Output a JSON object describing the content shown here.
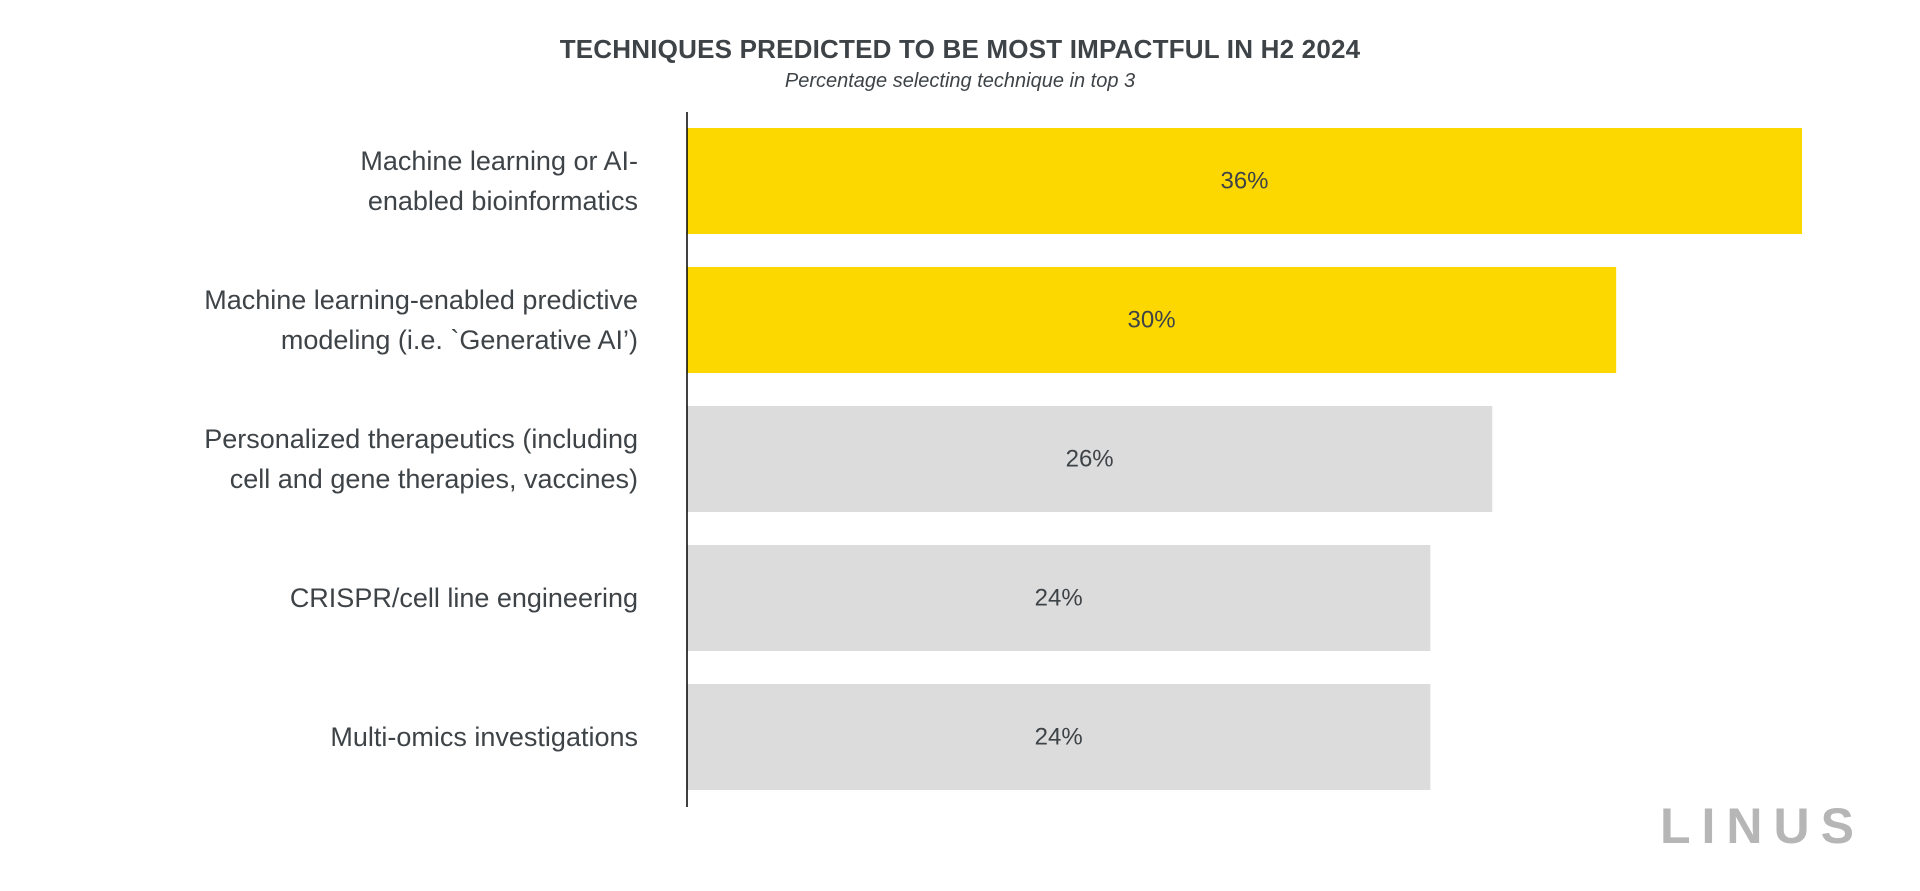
{
  "chart_data": {
    "type": "bar",
    "orientation": "horizontal",
    "title": "TECHNIQUES PREDICTED TO BE MOST IMPACTFUL IN H2 2024",
    "subtitle": "Percentage selecting technique in top 3",
    "categories": [
      [
        "Machine learning or AI-",
        "enabled bioinformatics"
      ],
      [
        "Machine learning-enabled predictive",
        "modeling (i.e. `Generative AI’)"
      ],
      [
        "Personalized therapeutics (including",
        "cell and gene therapies, vaccines)"
      ],
      [
        "CRISPR/cell line engineering"
      ],
      [
        "Multi-omics investigations"
      ]
    ],
    "values": [
      36,
      30,
      26,
      24,
      24
    ],
    "value_labels": [
      "36%",
      "30%",
      "26%",
      "24%",
      "24%"
    ],
    "bar_colors": [
      "#fcd800",
      "#fcd800",
      "#dcdcdc",
      "#dcdcdc",
      "#dcdcdc"
    ],
    "xlim": [
      0,
      36
    ],
    "grid": false,
    "legend": "none"
  },
  "brand": {
    "logo_text": "LINUS"
  },
  "colors": {
    "highlight": "#fcd800",
    "neutral": "#dcdcdc",
    "text": "#3e4347",
    "axis": "#000000",
    "logo": "#b6b6b6"
  }
}
